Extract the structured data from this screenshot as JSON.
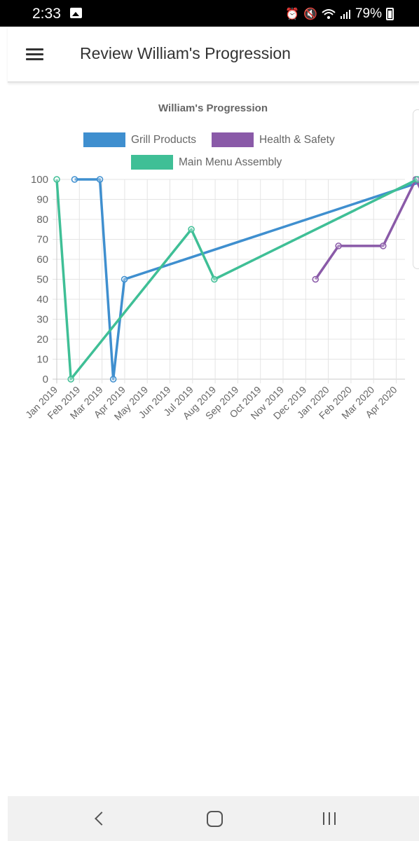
{
  "status_bar": {
    "time": "2:33",
    "image_icon": "image-icon",
    "alarm_icon": "alarm-icon",
    "mute_icon": "mute-icon",
    "wifi_icon": "wifi-icon",
    "signal_icon": "signal-icon",
    "battery_level": "79%",
    "battery_icon": "battery-icon"
  },
  "app_bar": {
    "menu_icon": "hamburger-menu-icon",
    "title": "Review William's Progression"
  },
  "nav_bar": {
    "back_icon": "back-icon",
    "home_icon": "home-icon",
    "recent_icon": "recent-apps-icon"
  },
  "colors": {
    "grill": "#3f8fcf",
    "health": "#8a5aa8",
    "menu": "#3fbf96",
    "grid": "#e4e4e4",
    "axis_text": "#666666"
  },
  "chart_data": {
    "type": "line",
    "title": "William's Progression",
    "xlabel": "",
    "ylabel": "",
    "ylim": [
      0,
      100
    ],
    "y_ticks": [
      "0",
      "10",
      "20",
      "30",
      "40",
      "50",
      "60",
      "70",
      "80",
      "90",
      "100"
    ],
    "x_ticks": [
      "Jan 2019",
      "Feb 2019",
      "Mar 2019",
      "Apr 2019",
      "May 2019",
      "Jun 2019",
      "Jul 2019",
      "Aug 2019",
      "Sep 2019",
      "Oct 2019",
      "Nov 2019",
      "Dec 2019",
      "Jan 2020",
      "Feb 2020",
      "Mar 2020",
      "Apr 2020"
    ],
    "grid": true,
    "legend_placement": "top",
    "series": [
      {
        "name": "Grill Products",
        "color": "#3f8fcf",
        "points": [
          {
            "x": "2019-01-25",
            "y": 100
          },
          {
            "x": "2019-02-28",
            "y": 100
          },
          {
            "x": "2019-03-18",
            "y": 0
          },
          {
            "x": "2019-04-02",
            "y": 50
          },
          {
            "x": "2020-05-15",
            "y": 100
          }
        ]
      },
      {
        "name": "Health & Safety",
        "color": "#8a5aa8",
        "points": [
          {
            "x": "2019-12-15",
            "y": 50
          },
          {
            "x": "2020-01-15",
            "y": 66.7
          },
          {
            "x": "2020-03-15",
            "y": 66.7
          },
          {
            "x": "2020-04-28",
            "y": 100
          },
          {
            "x": "2020-05-20",
            "y": 83.3
          }
        ]
      },
      {
        "name": "Main Menu Assembly",
        "color": "#3fbf96",
        "points": [
          {
            "x": "2019-01-01",
            "y": 100
          },
          {
            "x": "2019-01-20",
            "y": 0
          },
          {
            "x": "2019-07-01",
            "y": 75
          },
          {
            "x": "2019-08-01",
            "y": 50
          },
          {
            "x": "2020-04-30",
            "y": 100
          }
        ]
      }
    ]
  }
}
